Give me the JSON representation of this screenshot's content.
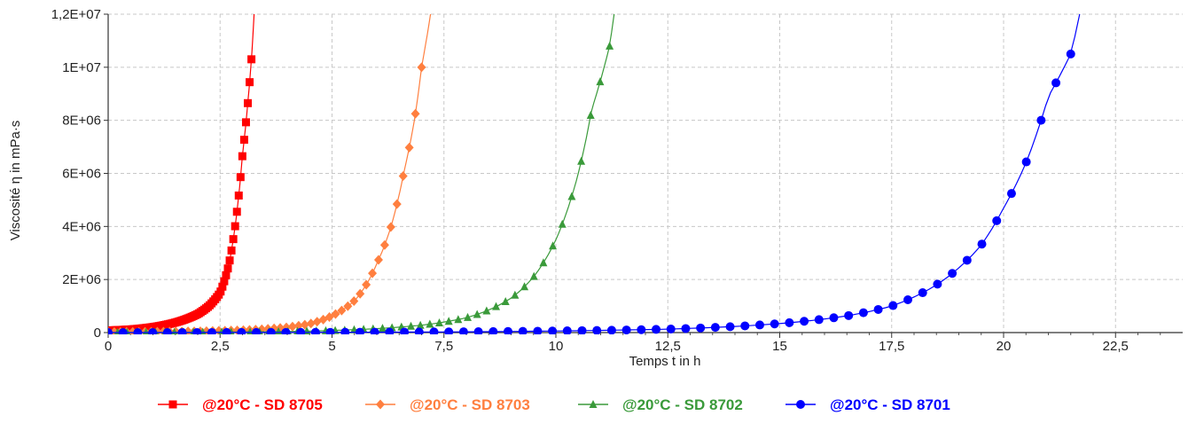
{
  "chart_data": {
    "type": "line",
    "xlabel": "Temps t in h",
    "ylabel": "Viscosité η in mPa·s",
    "xlim": [
      0,
      24
    ],
    "ylim": [
      0,
      12000000
    ],
    "x_ticks": [
      {
        "value": 0,
        "label": "0"
      },
      {
        "value": 2.5,
        "label": "2,5"
      },
      {
        "value": 5,
        "label": "5"
      },
      {
        "value": 7.5,
        "label": "7,5"
      },
      {
        "value": 10,
        "label": "10"
      },
      {
        "value": 12.5,
        "label": "12,5"
      },
      {
        "value": 15,
        "label": "15"
      },
      {
        "value": 17.5,
        "label": "17,5"
      },
      {
        "value": 20,
        "label": "20"
      },
      {
        "value": 22.5,
        "label": "22,5"
      }
    ],
    "y_ticks": [
      {
        "value": 0,
        "label": "0"
      },
      {
        "value": 2000000,
        "label": "2E+06"
      },
      {
        "value": 4000000,
        "label": "4E+06"
      },
      {
        "value": 6000000,
        "label": "6E+06"
      },
      {
        "value": 8000000,
        "label": "8E+06"
      },
      {
        "value": 10000000,
        "label": "1E+07"
      },
      {
        "value": 12000000,
        "label": "1,2E+07"
      }
    ],
    "grid": true,
    "legend_position": "bottom",
    "series": [
      {
        "name": "@20°C - SD 8705",
        "color": "#ff0000",
        "marker": "square",
        "marker_count": 80,
        "x": [
          0.0,
          0.5,
          1.0,
          1.5,
          2.0,
          2.25,
          2.5,
          2.7,
          2.85,
          3.0,
          3.1,
          3.2,
          3.26
        ],
        "y": [
          80000,
          120000,
          210000,
          380000,
          700000,
          1000000,
          1500000,
          2600000,
          4200000,
          6700000,
          8300000,
          10300000,
          12000000
        ]
      },
      {
        "name": "@20°C - SD 8703",
        "color": "#ff7f3f",
        "marker": "diamond",
        "marker_count": 52,
        "x": [
          0.0,
          1.0,
          2.0,
          3.0,
          4.0,
          4.5,
          5.0,
          5.5,
          6.0,
          6.3,
          6.6,
          6.85,
          7.0,
          7.2
        ],
        "y": [
          20000,
          30000,
          50000,
          90000,
          200000,
          330000,
          630000,
          1200000,
          2600000,
          3900000,
          6000000,
          8100000,
          10000000,
          12000000
        ]
      },
      {
        "name": "@20°C - SD 8702",
        "color": "#3a9a3a",
        "marker": "triangle",
        "marker_count": 54,
        "x": [
          0.0,
          2.0,
          4.0,
          6.0,
          7.0,
          8.0,
          9.0,
          9.5,
          10.0,
          10.5,
          10.8,
          11.2,
          11.3
        ],
        "y": [
          5000,
          15000,
          40000,
          150000,
          280000,
          560000,
          1300000,
          2100000,
          3500000,
          6000000,
          8400000,
          10800000,
          12000000
        ]
      },
      {
        "name": "@20°C - SD 8701",
        "color": "#0000ff",
        "marker": "circle",
        "marker_count": 66,
        "x": [
          0.0,
          5.0,
          10.0,
          12.5,
          15.0,
          16.5,
          17.5,
          18.5,
          19.5,
          20.0,
          20.5,
          21.0,
          21.5,
          21.7
        ],
        "y": [
          0,
          10000,
          60000,
          130000,
          340000,
          630000,
          1000000,
          1800000,
          3300000,
          4700000,
          6400000,
          8900000,
          10500000,
          12000000
        ]
      }
    ]
  }
}
